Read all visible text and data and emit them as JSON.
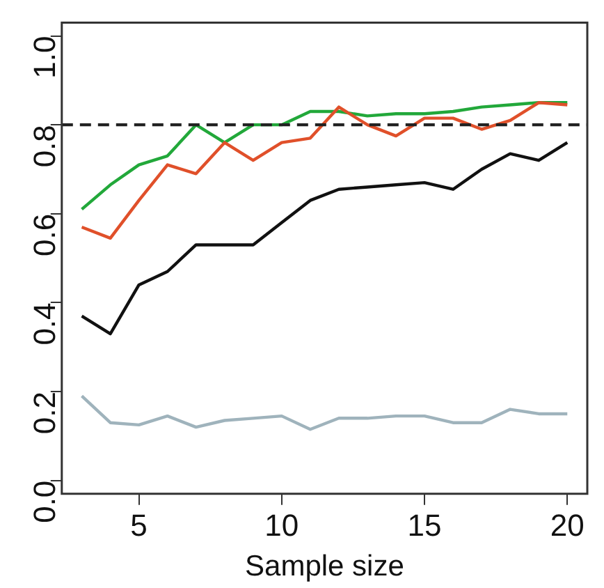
{
  "chart_data": {
    "type": "line",
    "xlabel": "Sample size",
    "x": [
      3,
      4,
      5,
      6,
      7,
      8,
      9,
      10,
      11,
      12,
      13,
      14,
      15,
      16,
      17,
      18,
      19,
      20
    ],
    "series": [
      {
        "color": "#9fb3bc",
        "values": [
          0.19,
          0.13,
          0.125,
          0.145,
          0.12,
          0.135,
          0.14,
          0.145,
          0.115,
          0.14,
          0.14,
          0.145,
          0.145,
          0.13,
          0.13,
          0.16,
          0.15,
          0.15
        ]
      },
      {
        "color": "#111111",
        "values": [
          0.37,
          0.33,
          0.44,
          0.47,
          0.53,
          0.53,
          0.53,
          0.58,
          0.63,
          0.655,
          0.66,
          0.665,
          0.67,
          0.655,
          0.7,
          0.735,
          0.72,
          0.76
        ]
      },
      {
        "color": "#e0502a",
        "values": [
          0.57,
          0.545,
          0.63,
          0.71,
          0.69,
          0.76,
          0.72,
          0.76,
          0.77,
          0.84,
          0.8,
          0.775,
          0.815,
          0.815,
          0.79,
          0.81,
          0.85,
          0.845
        ]
      },
      {
        "color": "#22a83a",
        "values": [
          0.61,
          0.665,
          0.71,
          0.73,
          0.8,
          0.76,
          0.8,
          0.8,
          0.83,
          0.83,
          0.82,
          0.825,
          0.825,
          0.83,
          0.84,
          0.845,
          0.85,
          0.85
        ]
      }
    ],
    "xlim": [
      2.3,
      20.7
    ],
    "xticks": [
      5,
      10,
      15,
      20
    ],
    "ylim": [
      -0.03,
      1.03
    ],
    "yticks": [
      {
        "value": 0,
        "label": "0.0"
      },
      {
        "value": 0.2,
        "label": "0.2"
      },
      {
        "value": 0.4,
        "label": "0.4"
      },
      {
        "value": 0.6,
        "label": "0.6"
      },
      {
        "value": 0.8,
        "label": "0.8"
      },
      {
        "value": 1,
        "label": "1.0"
      }
    ],
    "ref_lines": [
      {
        "axis": "y",
        "value": 0.8,
        "color": "#222222",
        "line_style": "dashed"
      }
    ],
    "grid": false,
    "legend": false,
    "marker": "none",
    "line_style": "solid"
  }
}
